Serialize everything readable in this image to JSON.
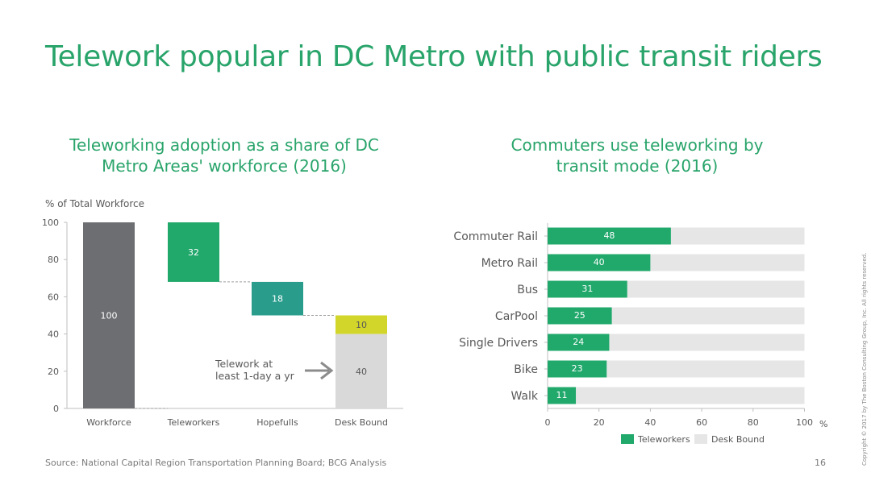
{
  "title": "Telework popular in DC Metro with public transit riders",
  "footer": {
    "source": "Source: National Capital Region Transportation Planning Board; BCG Analysis",
    "page_number": "16",
    "copyright": "Copyright © 2017 by The Boston Consulting Group, Inc. All rights reserved."
  },
  "colors": {
    "title_green": "#29a46a",
    "workforce": "#6d6e71",
    "teleworkers": "#21a86b",
    "hopefulls": "#2a9c8c",
    "desk_bound_top": "#d2d62a",
    "desk_bound": "#d9d9d9",
    "bar_background": "#e6e6e6"
  },
  "chart_data": [
    {
      "type": "bar",
      "subtype": "waterfall",
      "title_lines": [
        "Teleworking adoption as a share of DC",
        "Metro Areas' workforce (2016)"
      ],
      "ylabel": "% of Total Workforce",
      "ylim": [
        0,
        100
      ],
      "yticks": [
        0,
        20,
        40,
        60,
        80,
        100
      ],
      "categories": [
        "Workforce",
        "Teleworkers",
        "Hopefulls",
        "Desk Bound"
      ],
      "bars": [
        {
          "category": "Workforce",
          "base": 0,
          "value": 100,
          "label": "100"
        },
        {
          "category": "Teleworkers",
          "base": 68,
          "value": 32,
          "label": "32"
        },
        {
          "category": "Hopefulls",
          "base": 50,
          "value": 18,
          "label": "18"
        },
        {
          "category": "Desk Bound",
          "base": 40,
          "value": 10,
          "label": "10"
        },
        {
          "category": "Desk Bound",
          "base": 0,
          "value": 40,
          "label": "40"
        }
      ],
      "annotation": {
        "lines": [
          "Telework at",
          "least 1-day a yr"
        ]
      },
      "grid": false
    },
    {
      "type": "bar",
      "orientation": "horizontal",
      "title_lines": [
        "Commuters use teleworking by",
        "transit mode (2016)"
      ],
      "categories": [
        "Commuter Rail",
        "Metro Rail",
        "Bus",
        "CarPool",
        "Single Drivers",
        "Bike",
        "Walk"
      ],
      "series": [
        {
          "name": "Teleworkers",
          "values": [
            48,
            40,
            31,
            25,
            24,
            23,
            11
          ]
        },
        {
          "name": "Desk Bound",
          "values": [
            52,
            60,
            69,
            75,
            76,
            77,
            89
          ]
        }
      ],
      "xlim": [
        0,
        100
      ],
      "xticks": [
        0,
        20,
        40,
        60,
        80,
        100
      ],
      "xunit": "%",
      "legend": "bottom",
      "grid": false
    }
  ]
}
